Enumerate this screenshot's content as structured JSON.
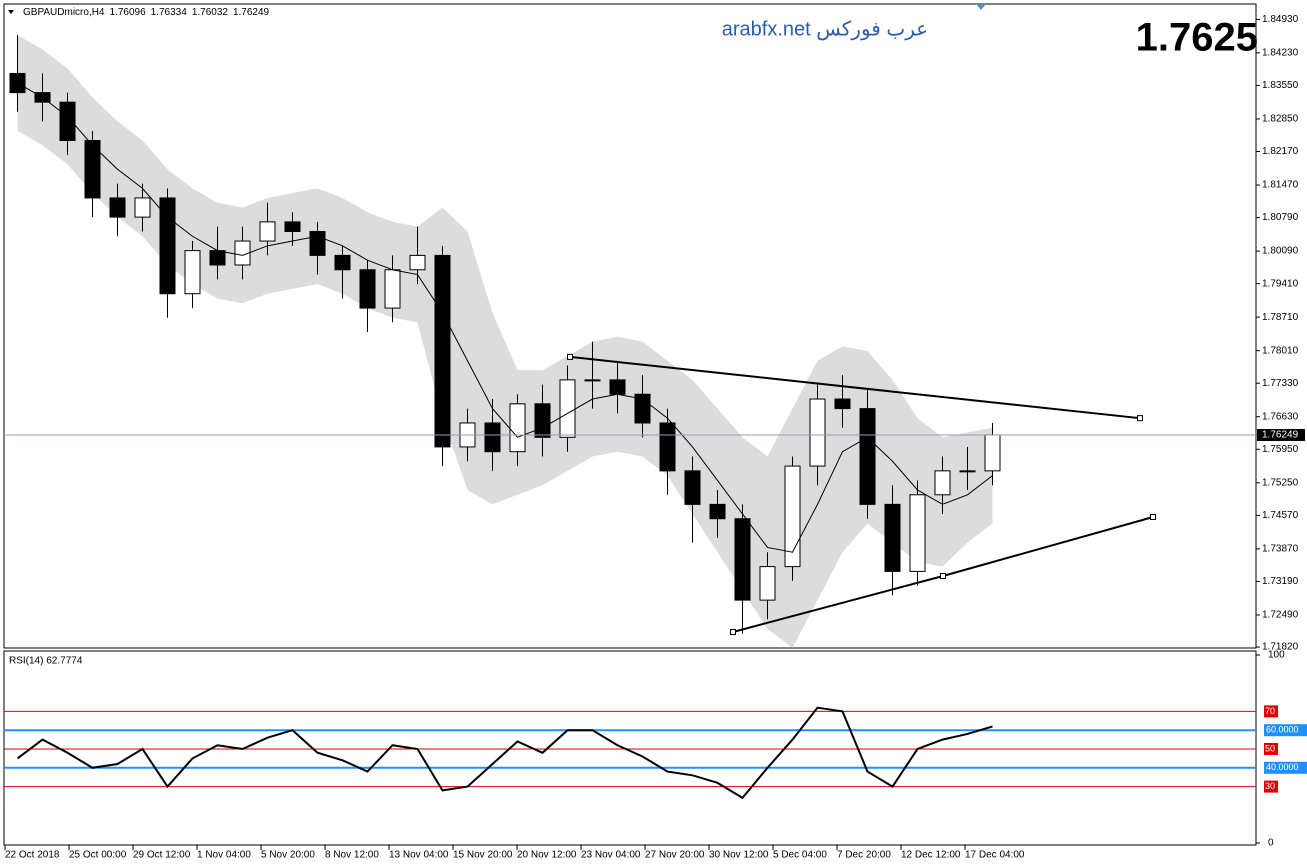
{
  "header": {
    "symbol": "GBPAUDmicro,H4",
    "quote": [
      1.76096,
      1.76334,
      1.76032,
      1.76249
    ]
  },
  "watermark": "arabfx.net عرب فوركس",
  "big_price": 1.7625,
  "chart_data": [
    {
      "type": "candlestick",
      "x": [
        0.5,
        1.5,
        2.5,
        3.5,
        4.5,
        5.5,
        6.5,
        7.5,
        8.5,
        9.5,
        10.5,
        11.5,
        12.5,
        13.5,
        14.5,
        15.5,
        16.5,
        17.5,
        18.5,
        19.5,
        20.5,
        21.5,
        22.5,
        23.5,
        24.5,
        25.5,
        26.5,
        27.5,
        28.5,
        29.5,
        30.5,
        31.5,
        32.5,
        33.5,
        34.5,
        35.5,
        36.5,
        37.5,
        38.5,
        39.5
      ],
      "open": [
        1.838,
        1.834,
        1.832,
        1.824,
        1.812,
        1.808,
        1.812,
        1.792,
        1.801,
        1.798,
        1.803,
        1.807,
        1.805,
        1.8,
        1.797,
        1.789,
        1.797,
        1.8,
        1.76,
        1.765,
        1.759,
        1.769,
        1.762,
        1.774,
        1.774,
        1.771,
        1.765,
        1.755,
        1.748,
        1.745,
        1.728,
        1.735,
        1.756,
        1.77,
        1.768,
        1.748,
        1.734,
        1.75,
        1.755,
        1.755
      ],
      "high": [
        1.846,
        1.838,
        1.834,
        1.826,
        1.815,
        1.815,
        1.814,
        1.803,
        1.806,
        1.806,
        1.811,
        1.809,
        1.807,
        1.802,
        1.799,
        1.8,
        1.806,
        1.802,
        1.768,
        1.77,
        1.771,
        1.773,
        1.777,
        1.782,
        1.778,
        1.775,
        1.768,
        1.758,
        1.751,
        1.748,
        1.738,
        1.758,
        1.773,
        1.775,
        1.772,
        1.752,
        1.753,
        1.758,
        1.76,
        1.765
      ],
      "low": [
        1.83,
        1.828,
        1.821,
        1.808,
        1.804,
        1.805,
        1.787,
        1.789,
        1.795,
        1.795,
        1.8,
        1.802,
        1.796,
        1.791,
        1.784,
        1.786,
        1.794,
        1.756,
        1.757,
        1.755,
        1.756,
        1.758,
        1.759,
        1.768,
        1.767,
        1.762,
        1.75,
        1.74,
        1.741,
        1.721,
        1.724,
        1.732,
        1.752,
        1.764,
        1.745,
        1.729,
        1.731,
        1.746,
        1.751,
        1.752
      ],
      "close": [
        1.834,
        1.832,
        1.824,
        1.812,
        1.808,
        1.812,
        1.792,
        1.801,
        1.798,
        1.803,
        1.807,
        1.805,
        1.8,
        1.797,
        1.789,
        1.797,
        1.8,
        1.76,
        1.765,
        1.759,
        1.769,
        1.762,
        1.774,
        1.774,
        1.771,
        1.765,
        1.755,
        1.748,
        1.745,
        1.728,
        1.735,
        1.756,
        1.77,
        1.768,
        1.748,
        1.734,
        1.75,
        1.755,
        1.755,
        1.7625
      ],
      "ma": [
        1.836,
        1.833,
        1.829,
        1.823,
        1.818,
        1.814,
        1.808,
        1.804,
        1.801,
        1.8,
        1.802,
        1.803,
        1.804,
        1.802,
        1.799,
        1.797,
        1.796,
        1.788,
        1.778,
        1.768,
        1.762,
        1.764,
        1.767,
        1.77,
        1.771,
        1.77,
        1.766,
        1.76,
        1.753,
        1.746,
        1.739,
        1.738,
        1.748,
        1.759,
        1.762,
        1.757,
        1.751,
        1.748,
        1.75,
        1.754
      ],
      "band_upper": [
        1.846,
        1.843,
        1.839,
        1.833,
        1.828,
        1.824,
        1.818,
        1.814,
        1.811,
        1.81,
        1.812,
        1.813,
        1.814,
        1.812,
        1.809,
        1.807,
        1.806,
        1.81,
        1.805,
        1.788,
        1.776,
        1.776,
        1.779,
        1.782,
        1.783,
        1.782,
        1.778,
        1.774,
        1.768,
        1.762,
        1.758,
        1.768,
        1.778,
        1.781,
        1.78,
        1.774,
        1.766,
        1.762,
        1.763,
        1.764
      ],
      "band_lower": [
        1.826,
        1.823,
        1.819,
        1.813,
        1.808,
        1.804,
        1.798,
        1.794,
        1.791,
        1.79,
        1.792,
        1.793,
        1.794,
        1.792,
        1.789,
        1.787,
        1.786,
        1.766,
        1.751,
        1.748,
        1.75,
        1.752,
        1.755,
        1.758,
        1.759,
        1.758,
        1.754,
        1.746,
        1.738,
        1.73,
        1.722,
        1.718,
        1.728,
        1.738,
        1.744,
        1.74,
        1.736,
        1.735,
        1.74,
        1.744
      ],
      "trendlines": [
        {
          "x": [
            22.6,
            45.4
          ],
          "y": [
            1.7788,
            1.766
          ]
        },
        {
          "x": [
            29.12,
            37.52,
            45.92
          ],
          "y": [
            1.72134,
            1.73304,
            1.74536
          ]
        }
      ],
      "last_price": {
        "value": 1.76249,
        "label": "1.76249"
      },
      "xlim": [
        0,
        50
      ],
      "ylim": [
        1.718,
        1.8523
      ],
      "yticks": [
        {
          "value": 1.8493,
          "label": "1.84930"
        },
        {
          "value": 1.8423,
          "label": "1.84230"
        },
        {
          "value": 1.8355,
          "label": "1.83550"
        },
        {
          "value": 1.8285,
          "label": "1.82850"
        },
        {
          "value": 1.8217,
          "label": "1.82170"
        },
        {
          "value": 1.8147,
          "label": "1.81470"
        },
        {
          "value": 1.8079,
          "label": "1.80790"
        },
        {
          "value": 1.8009,
          "label": "1.80090"
        },
        {
          "value": 1.7941,
          "label": "1.79410"
        },
        {
          "value": 1.7871,
          "label": "1.78710"
        },
        {
          "value": 1.7801,
          "label": "1.78010"
        },
        {
          "value": 1.7733,
          "label": "1.77330"
        },
        {
          "value": 1.7663,
          "label": "1.76630"
        },
        {
          "value": 1.7595,
          "label": "1.75950"
        },
        {
          "value": 1.7525,
          "label": "1.75250"
        },
        {
          "value": 1.7457,
          "label": "1.74570"
        },
        {
          "value": 1.7387,
          "label": "1.73870"
        },
        {
          "value": 1.7319,
          "label": "1.73190"
        },
        {
          "value": 1.7249,
          "label": "1.72490"
        },
        {
          "value": 1.7182,
          "label": "1.71820"
        }
      ],
      "xticks": [
        {
          "value": 0,
          "label": "22 Oct 2018"
        },
        {
          "value": 2.56,
          "label": "25 Oct 00:00"
        },
        {
          "value": 5.12,
          "label": "29 Oct 12:00"
        },
        {
          "value": 7.68,
          "label": "1 Nov 04:00"
        },
        {
          "value": 10.24,
          "label": "5 Nov 20:00"
        },
        {
          "value": 12.8,
          "label": "8 Nov 12:00"
        },
        {
          "value": 15.36,
          "label": "13 Nov 04:00"
        },
        {
          "value": 17.92,
          "label": "15 Nov 20:00"
        },
        {
          "value": 20.48,
          "label": "20 Nov 12:00"
        },
        {
          "value": 23.04,
          "label": "23 Nov 04:00"
        },
        {
          "value": 25.6,
          "label": "27 Nov 20:00"
        },
        {
          "value": 28.16,
          "label": "30 Nov 12:00"
        },
        {
          "value": 30.72,
          "label": "5 Dec 04:00"
        },
        {
          "value": 33.28,
          "label": "7 Dec 20:00"
        },
        {
          "value": 35.84,
          "label": "12 Dec 12:00"
        },
        {
          "value": 38.4,
          "label": "17 Dec 04:00"
        }
      ]
    },
    {
      "type": "line",
      "title": "RSI(14) 62.7774",
      "values": [
        45,
        55,
        48,
        40,
        42,
        50,
        30,
        45,
        52,
        50,
        56,
        60,
        48,
        44,
        38,
        52,
        50,
        28,
        30,
        42,
        54,
        48,
        60,
        60,
        52,
        46,
        38,
        36,
        32,
        24,
        40,
        55,
        72,
        70,
        38,
        30,
        50,
        55,
        58,
        62
      ],
      "ylim": [
        0,
        100
      ],
      "yticks": [
        0,
        100
      ],
      "levels_red": [
        70,
        50,
        30
      ],
      "levels_blue": [
        {
          "value": 60,
          "label": "60.0000"
        },
        {
          "value": 40,
          "label": "40.0000"
        }
      ]
    }
  ]
}
